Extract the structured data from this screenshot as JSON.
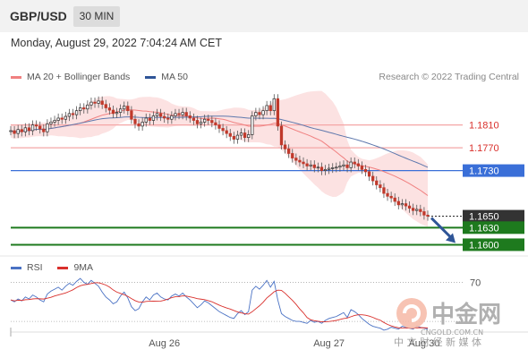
{
  "header": {
    "symbol": "GBP/USD",
    "timeframe": "30 MIN"
  },
  "timestamp": "Monday, August 29, 2022 7:04:24 AM CET",
  "legend": {
    "ma20_bb": "MA 20 + Bollinger Bands",
    "ma50": "MA 50",
    "ma20_color": "#f08080",
    "ma50_color": "#2f5597"
  },
  "copyright": "Research © 2022 Trading Central",
  "rsi_legend": {
    "rsi": "RSI",
    "ma9": "9MA",
    "rsi_color": "#4a72c4",
    "ma9_color": "#d9302c"
  },
  "watermark": {
    "brand": "中金网",
    "domain": "CNGOLD.COM.CN",
    "tagline": "中 文 财 经 新 媒 体"
  },
  "chart_data": [
    {
      "type": "candlestick",
      "ylim": [
        1.1585,
        1.188
      ],
      "x_ticks": [
        "Aug 26",
        "Aug 27",
        "Aug 30"
      ],
      "levels": [
        {
          "value": 1.181,
          "label": "1.1810",
          "style": "resistance",
          "color": "#f08080"
        },
        {
          "value": 1.177,
          "label": "1.1770",
          "style": "resistance",
          "color": "#f08080"
        },
        {
          "value": 1.173,
          "label": "1.1730",
          "style": "pivot",
          "color": "#3a6fd8"
        },
        {
          "value": 1.165,
          "label": "1.1650",
          "style": "current",
          "color": "#333333"
        },
        {
          "value": 1.163,
          "label": "1.1630",
          "style": "support",
          "color": "#1e7a1e"
        },
        {
          "value": 1.16,
          "label": "1.1600",
          "style": "support",
          "color": "#1e7a1e"
        }
      ],
      "close": [
        1.18,
        1.1795,
        1.1802,
        1.1798,
        1.1805,
        1.18,
        1.181,
        1.1808,
        1.1803,
        1.1798,
        1.1812,
        1.1815,
        1.1818,
        1.1822,
        1.182,
        1.1825,
        1.183,
        1.1828,
        1.1835,
        1.184,
        1.1838,
        1.1845,
        1.185,
        1.1848,
        1.1852,
        1.1846,
        1.184,
        1.1836,
        1.183,
        1.1832,
        1.1838,
        1.1843,
        1.1835,
        1.182,
        1.1812,
        1.1808,
        1.1815,
        1.1822,
        1.1818,
        1.1826,
        1.183,
        1.1825,
        1.1822,
        1.182,
        1.1826,
        1.183,
        1.1828,
        1.1832,
        1.1826,
        1.1822,
        1.1818,
        1.1812,
        1.1815,
        1.182,
        1.1818,
        1.1814,
        1.181,
        1.1804,
        1.18,
        1.1795,
        1.179,
        1.1785,
        1.1792,
        1.1796,
        1.1788,
        1.1793,
        1.1826,
        1.1832,
        1.1828,
        1.1835,
        1.1844,
        1.1835,
        1.1856,
        1.1808,
        1.1775,
        1.1768,
        1.176,
        1.1752,
        1.1748,
        1.1745,
        1.1742,
        1.1738,
        1.174,
        1.1735,
        1.1736,
        1.173,
        1.1732,
        1.1734,
        1.1735,
        1.1736,
        1.1738,
        1.174,
        1.1735,
        1.1745,
        1.1742,
        1.1738,
        1.1732,
        1.1728,
        1.172,
        1.1712,
        1.1705,
        1.17,
        1.169,
        1.1685,
        1.1682,
        1.1676,
        1.167,
        1.1672,
        1.1668,
        1.1664,
        1.166,
        1.1662,
        1.1658,
        1.1652,
        1.165
      ],
      "rsi": [
        52,
        50,
        53,
        51,
        55,
        53,
        57,
        55,
        52,
        50,
        58,
        61,
        63,
        65,
        62,
        66,
        69,
        67,
        71,
        74,
        70,
        68,
        72,
        69,
        66,
        60,
        55,
        52,
        48,
        50,
        56,
        60,
        54,
        45,
        41,
        43,
        50,
        55,
        52,
        57,
        59,
        55,
        53,
        52,
        56,
        58,
        56,
        59,
        55,
        52,
        48,
        44,
        47,
        51,
        49,
        46,
        43,
        40,
        38,
        36,
        34,
        33,
        38,
        41,
        37,
        40,
        62,
        66,
        63,
        67,
        72,
        65,
        71,
        52,
        38,
        35,
        33,
        31,
        30,
        30,
        29,
        28,
        31,
        29,
        30,
        28,
        31,
        33,
        34,
        35,
        37,
        39,
        34,
        42,
        40,
        37,
        33,
        30,
        27,
        25,
        24,
        23,
        21,
        22,
        24,
        23,
        22,
        25,
        24,
        23,
        22,
        25,
        24,
        23,
        22
      ]
    }
  ]
}
